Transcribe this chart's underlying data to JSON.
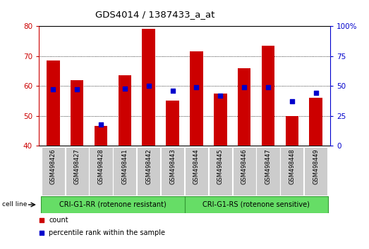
{
  "title": "GDS4014 / 1387433_a_at",
  "categories": [
    "GSM498426",
    "GSM498427",
    "GSM498428",
    "GSM498441",
    "GSM498442",
    "GSM498443",
    "GSM498444",
    "GSM498445",
    "GSM498446",
    "GSM498447",
    "GSM498448",
    "GSM498449"
  ],
  "bar_values": [
    68.5,
    62.0,
    46.5,
    63.5,
    79.0,
    55.0,
    71.5,
    57.5,
    66.0,
    73.5,
    50.0,
    56.0
  ],
  "percentile_values": [
    47,
    47,
    18,
    48,
    50,
    46,
    49,
    42,
    49,
    49,
    37,
    44
  ],
  "bar_color": "#cc0000",
  "dot_color": "#0000cc",
  "ylim_left": [
    40,
    80
  ],
  "ylim_right": [
    0,
    100
  ],
  "yticks_left": [
    40,
    50,
    60,
    70,
    80
  ],
  "yticks_right": [
    0,
    25,
    50,
    75,
    100
  ],
  "group1_label": "CRI-G1-RR (rotenone resistant)",
  "group2_label": "CRI-G1-RS (rotenone sensitive)",
  "group1_indices": [
    0,
    1,
    2,
    3,
    4,
    5
  ],
  "group2_indices": [
    6,
    7,
    8,
    9,
    10,
    11
  ],
  "cell_line_label": "cell line",
  "legend_count_label": "count",
  "legend_percentile_label": "percentile rank within the sample",
  "group_bg_color": "#66dd66",
  "tick_label_bg": "#cccccc",
  "right_axis_color": "#0000cc",
  "left_axis_color": "#cc0000"
}
